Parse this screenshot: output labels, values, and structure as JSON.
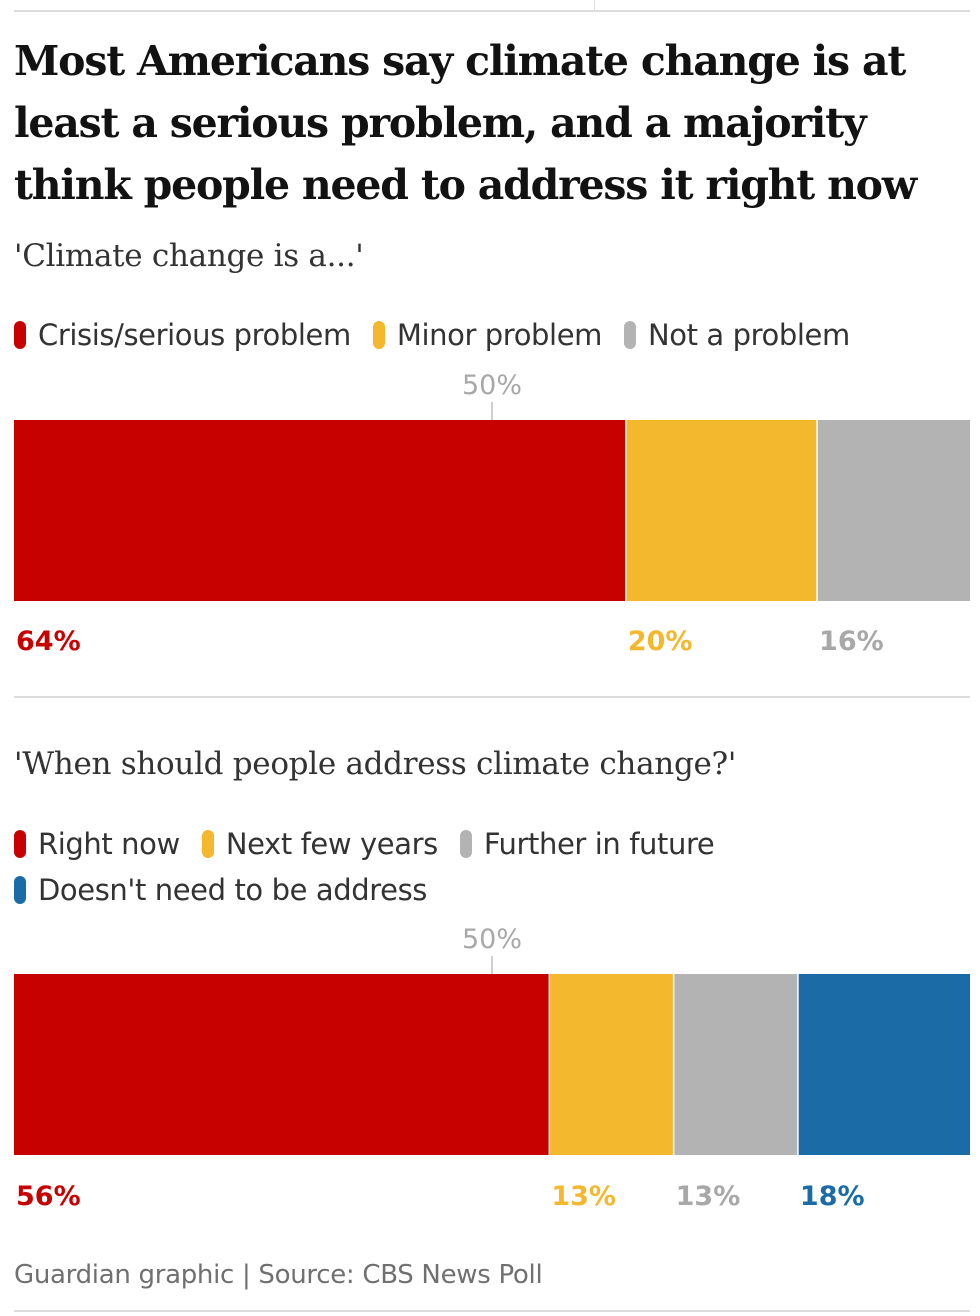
{
  "title": "Most Americans say climate change is at least a serious problem, and a majority think people need to address it right now",
  "source": "Guardian graphic | Source: CBS News Poll",
  "colors": {
    "red": "#c70000",
    "yellow": "#f4b82e",
    "grey": "#b3b3b3",
    "blue": "#1a6ba6",
    "label_grey": "#a8a8a8",
    "rule": "#dcdcdc"
  },
  "chart_data": [
    {
      "type": "bar",
      "orientation": "horizontal-stacked",
      "subtitle": "'Climate change is a...'",
      "reference_label": "50%",
      "reference_value": 50,
      "xlim": [
        0,
        100
      ],
      "series": [
        {
          "name": "Crisis/serious problem",
          "value": 64,
          "label": "64%",
          "color": "#c70000",
          "label_color": "#c70000"
        },
        {
          "name": "Minor problem",
          "value": 20,
          "label": "20%",
          "color": "#f4b82e",
          "label_color": "#f4b82e"
        },
        {
          "name": "Not a problem",
          "value": 16,
          "label": "16%",
          "color": "#b3b3b3",
          "label_color": "#a8a8a8"
        }
      ]
    },
    {
      "type": "bar",
      "orientation": "horizontal-stacked",
      "subtitle": "'When should people address climate change?'",
      "reference_label": "50%",
      "reference_value": 50,
      "xlim": [
        0,
        100
      ],
      "series": [
        {
          "name": "Right now",
          "value": 56,
          "label": "56%",
          "color": "#c70000",
          "label_color": "#c70000"
        },
        {
          "name": "Next few years",
          "value": 13,
          "label": "13%",
          "color": "#f4b82e",
          "label_color": "#f4b82e"
        },
        {
          "name": "Further in future",
          "value": 13,
          "label": "13%",
          "color": "#b3b3b3",
          "label_color": "#a8a8a8"
        },
        {
          "name": "Doesn't need to be address",
          "value": 18,
          "label": "18%",
          "color": "#1a6ba6",
          "label_color": "#1a6ba6"
        }
      ]
    }
  ]
}
